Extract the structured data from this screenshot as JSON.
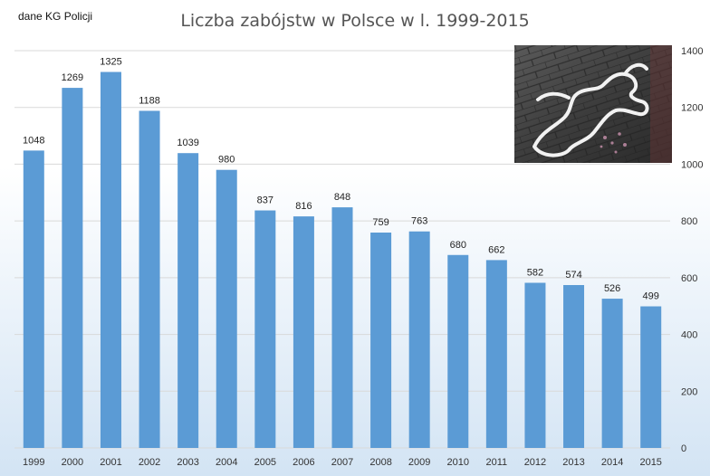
{
  "chart_data": {
    "type": "bar",
    "title": "Liczba zabójstw w Polsce w l. 1999-2015",
    "source_note": "dane KG Policji",
    "categories": [
      "1999",
      "2000",
      "2001",
      "2002",
      "2003",
      "2004",
      "2005",
      "2006",
      "2007",
      "2008",
      "2009",
      "2010",
      "2011",
      "2012",
      "2013",
      "2014",
      "2015"
    ],
    "values": [
      1048,
      1269,
      1325,
      1188,
      1039,
      980,
      837,
      816,
      848,
      759,
      763,
      680,
      662,
      582,
      574,
      526,
      499
    ],
    "data_labels": [
      "1048",
      "1269",
      "1325",
      "1188",
      "1039",
      "980",
      "837",
      "816",
      "848",
      "759",
      "763",
      "680",
      "662",
      "582",
      "574",
      "526",
      "499"
    ],
    "ylim": [
      0,
      1400
    ],
    "y_ticks": [
      "0",
      "200",
      "400",
      "600",
      "800",
      "1000",
      "1200",
      "1400"
    ],
    "y_tick_values": [
      0,
      200,
      400,
      600,
      800,
      1000,
      1200,
      1400
    ],
    "y_axis_side": "right",
    "grid": true,
    "bar_color": "#5B9BD5",
    "background_top": "#FFFFFF",
    "background_bottom": "#D3E4F4",
    "image": {
      "icon": "chalk-body-outline-photo"
    }
  }
}
